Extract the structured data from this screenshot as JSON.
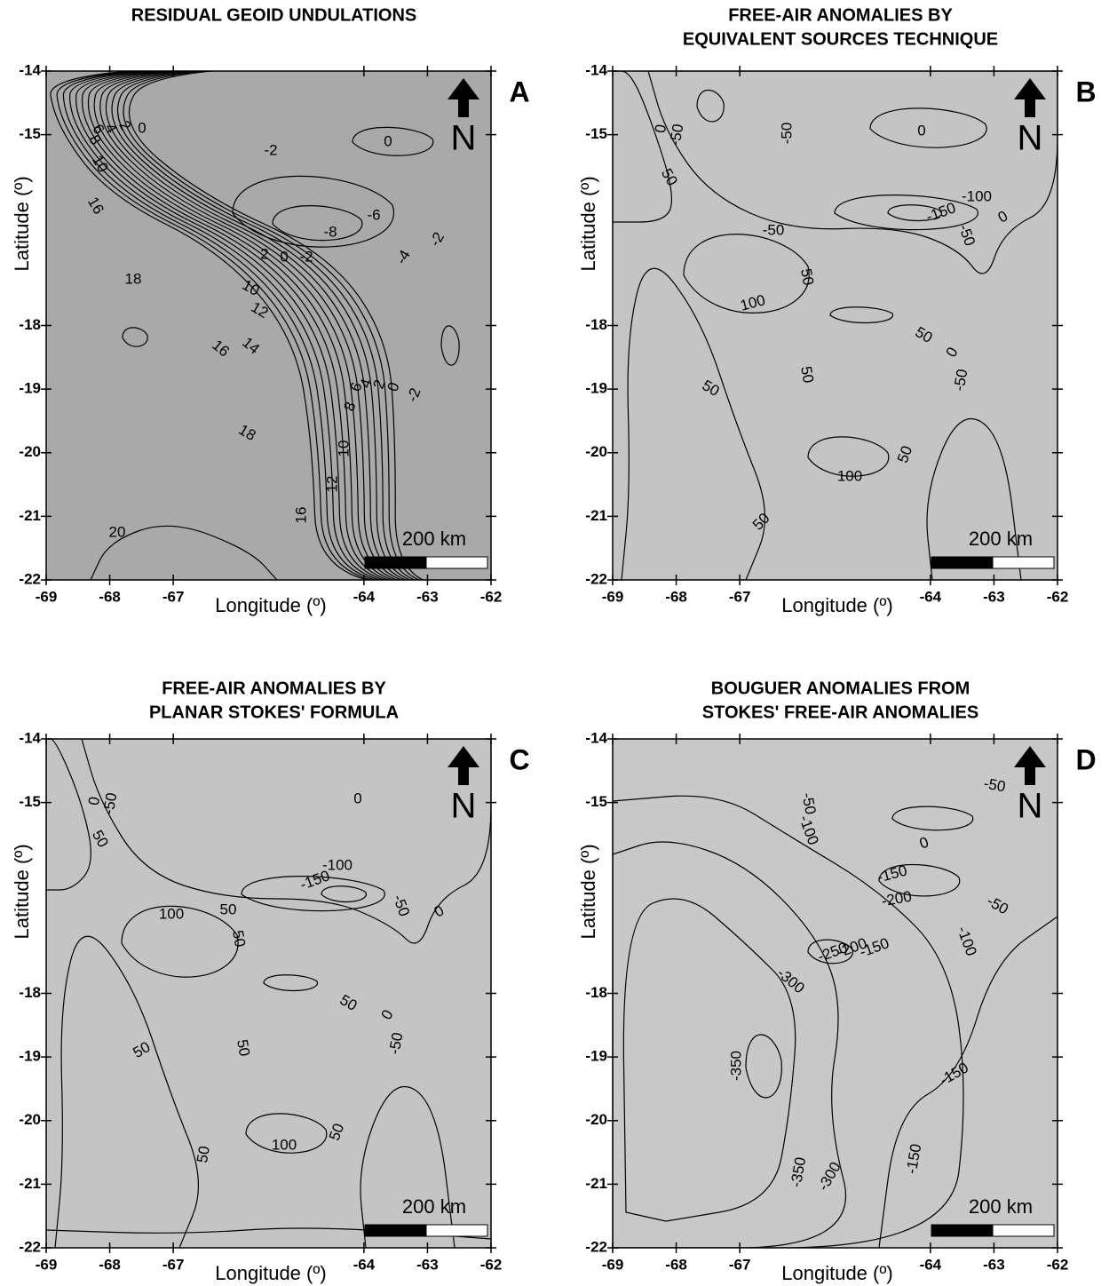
{
  "chart_data": [
    {
      "type": "contour",
      "title": [
        "RESIDUAL GEOID UNDULATIONS"
      ],
      "panel_label": "A",
      "xlabel": "Longitude (º)",
      "ylabel": "Latitude (º)",
      "xlim": [
        -69,
        -62
      ],
      "ylim": [
        -22,
        -14
      ],
      "xticks": [
        -69,
        -68,
        -67,
        -64,
        -63,
        -62
      ],
      "yticks": [
        -22,
        -21,
        -20,
        -19,
        -18,
        -15,
        -14
      ],
      "scale_bar": "200 km",
      "north": "N",
      "contour_labels": [
        "0",
        "-2",
        "0",
        "-8",
        "-6",
        "-4",
        "-2",
        "18",
        "-2",
        "0",
        "2",
        "10",
        "12",
        "14",
        "16",
        "18",
        "8",
        "6",
        "4",
        "2",
        "0",
        "-2",
        "10",
        "12",
        "16",
        "20",
        "6",
        "4",
        "2",
        "8",
        "10",
        "16"
      ]
    },
    {
      "type": "contour",
      "title": [
        "FREE-AIR ANOMALIES BY",
        "EQUIVALENT SOURCES TECHNIQUE"
      ],
      "panel_label": "B",
      "xlabel": "Longitude (º)",
      "ylabel": "Latitude (º)",
      "xlim": [
        -69,
        -62
      ],
      "ylim": [
        -22,
        -14
      ],
      "xticks": [
        -69,
        -68,
        -67,
        -64,
        -63,
        -62
      ],
      "yticks": [
        -22,
        -21,
        -20,
        -19,
        -18,
        -15,
        -14
      ],
      "scale_bar": "200 km",
      "north": "N",
      "contour_labels": [
        "0",
        "-50",
        "50",
        "-50",
        "0",
        "-100",
        "-150",
        "-50",
        "-50",
        "0",
        "50",
        "100",
        "50",
        "0",
        "-50",
        "50",
        "50",
        "100",
        "50",
        "50"
      ]
    },
    {
      "type": "contour",
      "title": [
        "FREE-AIR ANOMALIES BY",
        "PLANAR STOKES' FORMULA"
      ],
      "panel_label": "C",
      "xlabel": "Longitude (º)",
      "ylabel": "Latitude (º)",
      "xlim": [
        -69,
        -62
      ],
      "ylim": [
        -22,
        -14
      ],
      "xticks": [
        -69,
        -68,
        -67,
        -64,
        -63,
        -62
      ],
      "yticks": [
        -22,
        -21,
        -20,
        -19,
        -18,
        -15,
        -14
      ],
      "scale_bar": "200 km",
      "north": "N",
      "contour_labels": [
        "0",
        "-50",
        "50",
        "0",
        "-100",
        "-150",
        "100",
        "50",
        "50",
        "-50",
        "0",
        "50",
        "0",
        "-50",
        "50",
        "50",
        "100",
        "50",
        "50"
      ]
    },
    {
      "type": "contour",
      "title": [
        "BOUGUER ANOMALIES FROM",
        "STOKES' FREE-AIR ANOMALIES"
      ],
      "panel_label": "D",
      "xlabel": "Longitude (º)",
      "ylabel": "Latitude (º)",
      "xlim": [
        -69,
        -62
      ],
      "ylim": [
        -22,
        -14
      ],
      "xticks": [
        -69,
        -68,
        -67,
        -64,
        -63,
        -62
      ],
      "yticks": [
        -22,
        -21,
        -20,
        -19,
        -18,
        -15,
        -14
      ],
      "scale_bar": "200 km",
      "north": "N",
      "contour_labels": [
        "-50",
        "-50",
        "-100",
        "0",
        "-150",
        "-200",
        "-50",
        "-100",
        "-250",
        "-200",
        "-150",
        "-300",
        "-350",
        "-150",
        "-350",
        "-300",
        "-150"
      ]
    }
  ]
}
